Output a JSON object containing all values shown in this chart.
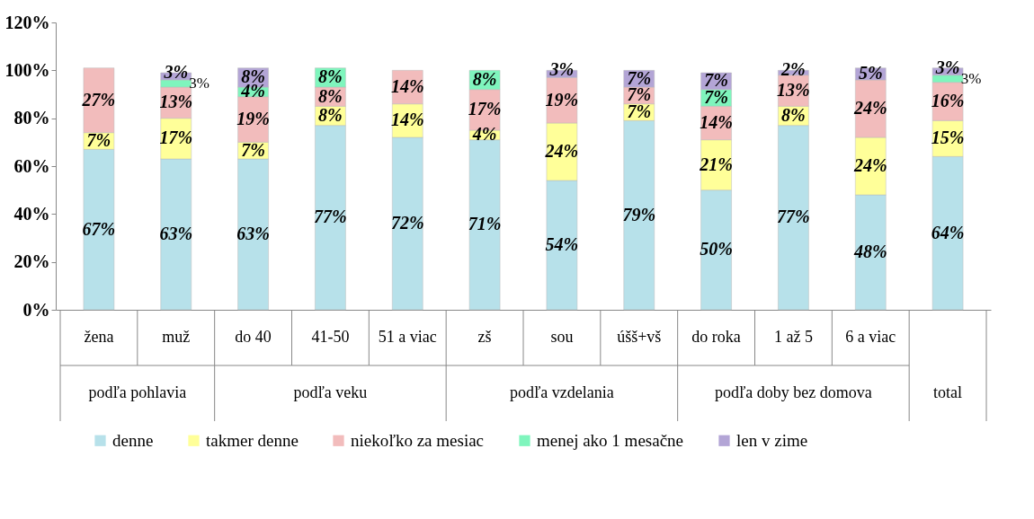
{
  "chart_data": {
    "type": "bar",
    "stacked": true,
    "categories": [
      "žena",
      "muž",
      "do 40",
      "41-50",
      "51 a viac",
      "zš",
      "sou",
      "úšš+vš",
      "do roka",
      "1 až 5",
      "6 a viac",
      null
    ],
    "series": [
      {
        "name": "denne",
        "color": "#b7e1ea",
        "values": [
          67,
          63,
          63,
          77,
          72,
          71,
          54,
          79,
          50,
          77,
          48,
          64
        ],
        "value_labels": [
          "67%",
          "63%",
          "63%",
          "77%",
          "72%",
          "71%",
          "54%",
          "79%",
          "50%",
          "77%",
          "48%",
          "64%"
        ]
      },
      {
        "name": "takmer denne",
        "color": "#ffff99",
        "values": [
          7,
          17,
          7,
          8,
          14,
          4,
          24,
          7,
          21,
          8,
          24,
          15
        ],
        "value_labels": [
          "7%",
          "17%",
          "7%",
          "8%",
          "14%",
          "4%",
          "24%",
          "7%",
          "21%",
          "8%",
          "24%",
          "15%"
        ]
      },
      {
        "name": "niekoľko za mesiac",
        "color": "#f2bcbc",
        "values": [
          27,
          13,
          19,
          8,
          14,
          17,
          19,
          7,
          14,
          13,
          24,
          16
        ],
        "value_labels": [
          "27%",
          "13%",
          "19%",
          "8%",
          "14%",
          "17%",
          "19%",
          "7%",
          "14%",
          "13%",
          "24%",
          "16%"
        ]
      },
      {
        "name": "menej ako 1 mesačne",
        "color": "#7ff5bd",
        "values": [
          null,
          3,
          4,
          8,
          null,
          8,
          null,
          null,
          7,
          null,
          null,
          3
        ],
        "value_labels": [
          null,
          "3%",
          "4%",
          "8%",
          null,
          "8%",
          null,
          null,
          "7%",
          null,
          null,
          "3%"
        ]
      },
      {
        "name": "len v zime",
        "color": "#b3a5d6",
        "values": [
          null,
          3,
          8,
          null,
          null,
          null,
          3,
          7,
          7,
          2,
          5,
          3
        ],
        "value_labels": [
          null,
          "3%",
          "8%",
          null,
          null,
          null,
          "3%",
          "7%",
          "7%",
          "2%",
          "5%",
          "3%"
        ]
      }
    ],
    "ylim": [
      0,
      120
    ],
    "yticks": [
      {
        "value": 0,
        "label": "0%"
      },
      {
        "value": 20,
        "label": "20%"
      },
      {
        "value": 40,
        "label": "40%"
      },
      {
        "value": 60,
        "label": "60%"
      },
      {
        "value": 80,
        "label": "80%"
      },
      {
        "value": 100,
        "label": "100%"
      },
      {
        "value": 120,
        "label": "120%"
      }
    ],
    "grid": false,
    "legend": "bottom",
    "annotations": [
      "podľa pohlavia",
      "podľa veku",
      "podľa vzdelania",
      "podľa doby bez domova",
      "total"
    ]
  }
}
